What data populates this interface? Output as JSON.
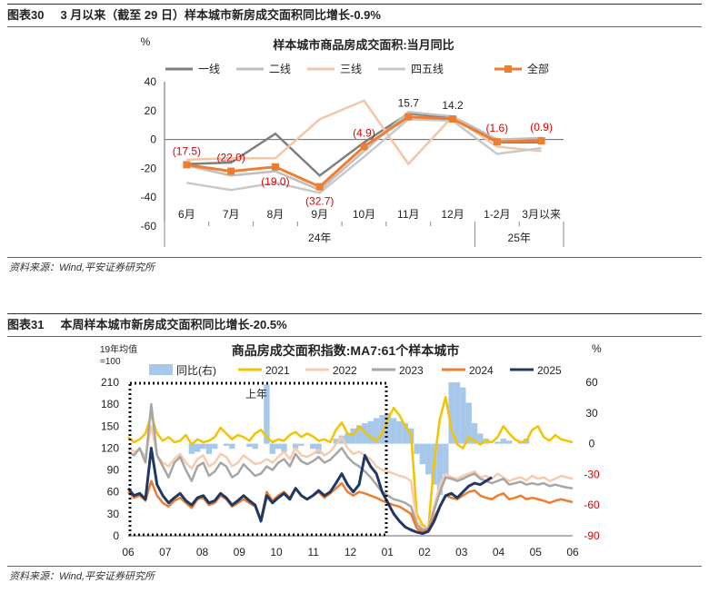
{
  "fig30": {
    "tag": "图表30",
    "caption": "3 月以来（截至 29 日）样本城市新房成交面积同比增长-0.9%",
    "source": "资料来源：Wind,平安证券研究所"
  },
  "fig31": {
    "tag": "图表31",
    "caption": "本周样本城市新房成交面积同比增长-20.5%",
    "source": "资料来源：Wind,平安证券研究所"
  },
  "colors": {
    "line1": "#7f7f7f",
    "line2": "#bfbfbf",
    "line3": "#f4c6a8",
    "line4": "#c8c8c8",
    "all": "#ed7d31",
    "label_red": "#e00000",
    "bar": "#a6c8ea",
    "y2021": "#f5c400",
    "y2022": "#f8cbad",
    "y2023": "#a6a6a6",
    "y2024": "#ed7d31",
    "y2025": "#1f3864"
  },
  "chart_data": [
    {
      "type": "line",
      "title": "样本城市商品房成交面积:当月同比",
      "ylabel": "%",
      "ylim": [
        -60,
        40
      ],
      "yticks": [
        40,
        20,
        0,
        -20,
        -40,
        -60
      ],
      "categories": [
        "6月",
        "7月",
        "8月",
        "9月",
        "10月",
        "11月",
        "12月",
        "1-2月",
        "3月以来"
      ],
      "groups": [
        {
          "label": "24年",
          "from": 0,
          "to": 6
        },
        {
          "label": "25年",
          "from": 7,
          "to": 8
        }
      ],
      "series": [
        {
          "name": "一线",
          "values": [
            -17,
            -16,
            4,
            -25,
            -2,
            18,
            15,
            -2,
            -2
          ]
        },
        {
          "name": "二线",
          "values": [
            -18,
            -25,
            -22,
            -35,
            -8,
            19,
            16,
            0,
            1
          ]
        },
        {
          "name": "三线",
          "values": [
            -14,
            -13,
            -13,
            14,
            27,
            -17,
            16,
            -5,
            -8
          ]
        },
        {
          "name": "四五线",
          "values": [
            -30,
            -35,
            -30,
            -37,
            -12,
            14,
            13,
            -10,
            -6
          ]
        },
        {
          "name": "全部",
          "values": [
            -17.5,
            -22.0,
            -19.0,
            -32.7,
            -4.9,
            15.7,
            14.2,
            -1.6,
            -0.9
          ]
        }
      ],
      "data_labels": [
        {
          "i": 0,
          "text": "(17.5)"
        },
        {
          "i": 1,
          "text": "(22.0)"
        },
        {
          "i": 2,
          "text": "(19.0)"
        },
        {
          "i": 3,
          "text": "(32.7)"
        },
        {
          "i": 4,
          "text": "(4.9)"
        },
        {
          "i": 5,
          "text": "15.7"
        },
        {
          "i": 6,
          "text": "14.2"
        },
        {
          "i": 7,
          "text": "(1.6)"
        },
        {
          "i": 8,
          "text": "(0.9)"
        }
      ]
    },
    {
      "type": "line",
      "title": "商品房成交面积指数:MA7:61个样本城市",
      "ylabel": "19年均值\n=100",
      "y2label": "%",
      "ylim": [
        0,
        210
      ],
      "y2lim": [
        -90,
        60
      ],
      "yticks": [
        210,
        180,
        150,
        120,
        90,
        60,
        30,
        0
      ],
      "y2ticks": [
        60,
        30,
        0,
        -30,
        -60,
        -90
      ],
      "xticks": [
        "06",
        "07",
        "08",
        "09",
        "10",
        "11",
        "12",
        "01",
        "02",
        "03",
        "04",
        "05",
        "06"
      ],
      "annotation": "上年",
      "legend": [
        "同比(右)",
        "2021",
        "2022",
        "2023",
        "2024",
        "2025"
      ],
      "series": [
        {
          "name": "2021",
          "values": [
            135,
            128,
            132,
            140,
            165,
            140,
            130,
            135,
            128,
            130,
            138,
            125,
            132,
            128,
            130,
            135,
            148,
            140,
            132,
            138,
            135,
            130,
            140,
            145,
            135,
            128,
            132,
            130,
            138,
            142,
            135,
            140,
            136,
            130,
            132,
            128,
            145,
            155,
            140,
            138,
            150,
            142,
            135,
            130,
            140,
            160,
            175,
            165,
            150,
            140,
            30,
            15,
            10,
            100,
            160,
            190,
            145,
            125,
            120,
            135,
            130,
            125,
            130,
            128,
            135,
            150,
            140,
            132,
            128,
            130,
            145,
            150,
            135,
            130,
            138,
            132,
            130,
            128
          ]
        },
        {
          "name": "2022",
          "values": [
            120,
            115,
            118,
            108,
            150,
            110,
            100,
            95,
            105,
            112,
            100,
            92,
            105,
            110,
            95,
            100,
            112,
            108,
            95,
            100,
            110,
            104,
            98,
            100,
            105,
            100,
            108,
            115,
            105,
            120,
            110,
            108,
            112,
            118,
            110,
            115,
            125,
            135,
            120,
            112,
            115,
            110,
            105,
            95,
            90,
            88,
            85,
            82,
            80,
            75,
            20,
            10,
            12,
            40,
            70,
            85,
            80,
            78,
            82,
            85,
            88,
            80,
            82,
            78,
            85,
            80,
            75,
            78,
            80,
            76,
            82,
            78,
            80,
            75,
            78,
            82,
            80,
            78
          ]
        },
        {
          "name": "2023",
          "values": [
            115,
            110,
            120,
            100,
            180,
            110,
            95,
            80,
            100,
            108,
            90,
            75,
            95,
            100,
            82,
            88,
            100,
            95,
            80,
            85,
            98,
            90,
            82,
            85,
            95,
            90,
            100,
            105,
            95,
            112,
            102,
            98,
            102,
            108,
            100,
            104,
            112,
            120,
            108,
            100,
            95,
            88,
            80,
            70,
            60,
            55,
            50,
            48,
            45,
            40,
            15,
            8,
            10,
            35,
            60,
            80,
            78,
            75,
            78,
            82,
            85,
            78,
            75,
            72,
            75,
            78,
            70,
            72,
            74,
            70,
            72,
            70,
            72,
            68,
            70,
            68,
            66,
            65
          ]
        },
        {
          "name": "2024",
          "values": [
            60,
            52,
            55,
            48,
            75,
            55,
            45,
            40,
            48,
            52,
            45,
            38,
            50,
            52,
            42,
            45,
            55,
            50,
            40,
            45,
            50,
            45,
            40,
            22,
            60,
            48,
            55,
            60,
            52,
            65,
            55,
            50,
            55,
            60,
            52,
            58,
            65,
            72,
            60,
            55,
            60,
            58,
            55,
            52,
            48,
            45,
            42,
            40,
            35,
            30,
            10,
            5,
            8,
            25,
            40,
            55,
            52,
            50,
            55,
            60,
            62,
            55,
            52,
            50,
            55,
            58,
            50,
            52,
            55,
            50,
            52,
            50,
            48,
            45,
            48,
            50,
            48,
            46
          ]
        },
        {
          "name": "2025",
          "values": [
            65,
            55,
            58,
            50,
            120,
            70,
            55,
            45,
            52,
            58,
            48,
            42,
            52,
            55,
            45,
            48,
            58,
            52,
            42,
            48,
            55,
            48,
            42,
            20,
            55,
            45,
            52,
            58,
            50,
            65,
            55,
            50,
            55,
            62,
            55,
            60,
            72,
            85,
            70,
            60,
            70,
            110,
            95,
            85,
            60,
            45,
            30,
            20,
            12,
            8,
            5,
            3,
            6,
            20,
            40,
            55,
            58,
            52,
            60,
            68,
            72,
            70,
            75,
            80
          ]
        }
      ],
      "yoy_bars": [
        0,
        0,
        0,
        0,
        0,
        0,
        0,
        0,
        0,
        0,
        0,
        -10,
        -8,
        -5,
        -10,
        -5,
        0,
        -2,
        -5,
        0,
        0,
        -3,
        -5,
        0,
        58,
        -10,
        -5,
        -8,
        0,
        -5,
        -2,
        0,
        -5,
        -10,
        0,
        0,
        5,
        8,
        10,
        15,
        18,
        20,
        22,
        25,
        28,
        30,
        25,
        22,
        20,
        15,
        -10,
        -20,
        -30,
        -40,
        -50,
        -30,
        60,
        60,
        55,
        40,
        20,
        10,
        5,
        0,
        2,
        5,
        3,
        0,
        2,
        5,
        0,
        0,
        0,
        0,
        0,
        0,
        0,
        0
      ]
    }
  ]
}
